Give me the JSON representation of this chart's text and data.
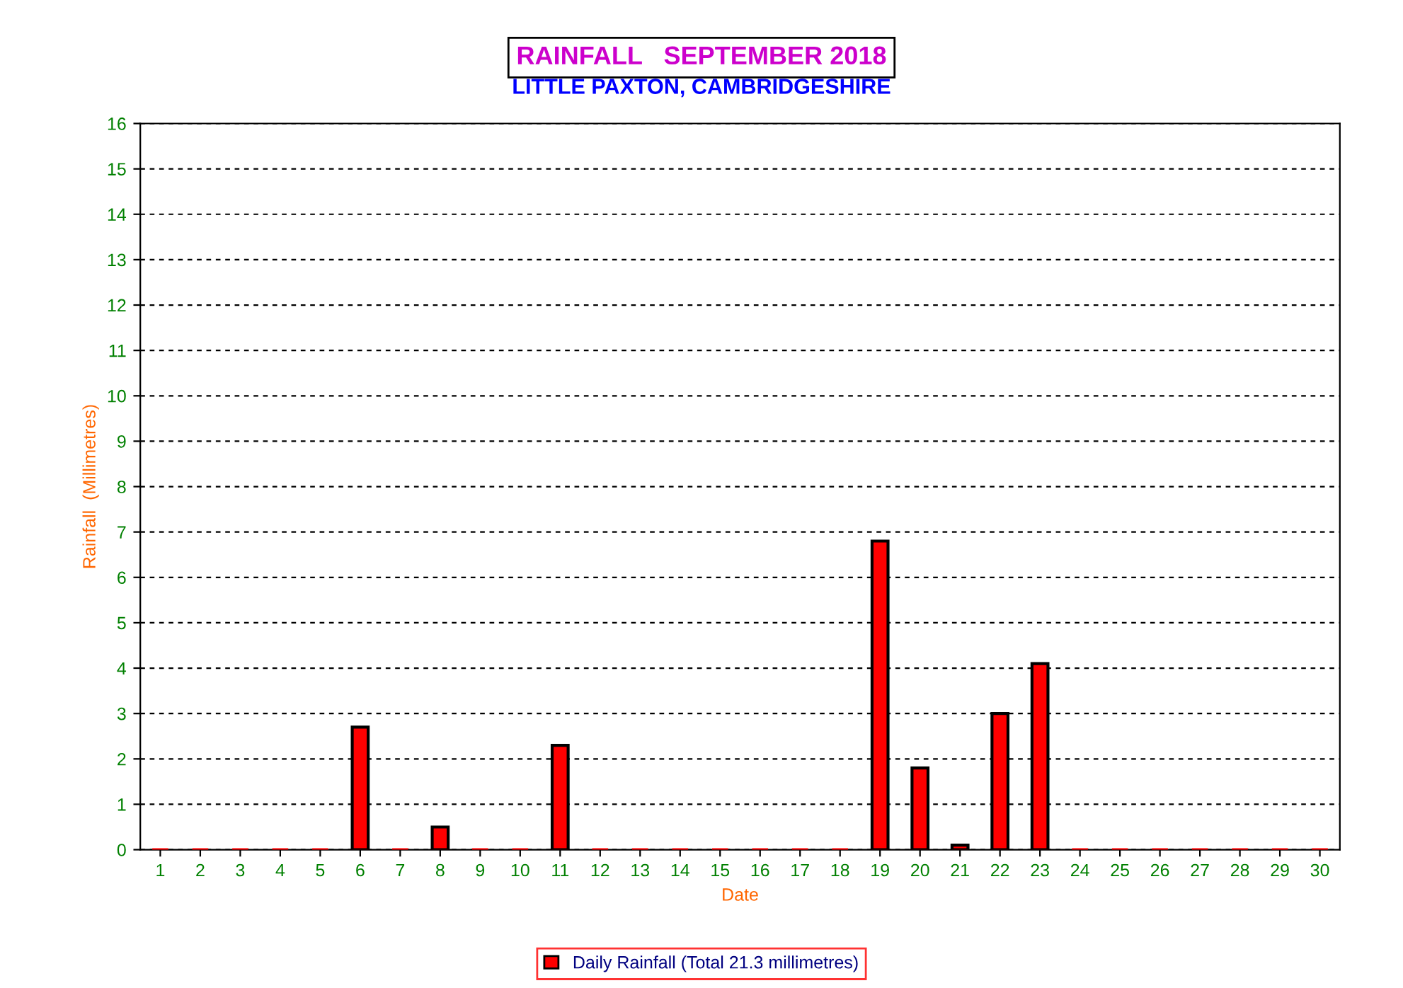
{
  "chart_data": {
    "type": "bar",
    "title": "RAINFALL   SEPTEMBER 2018",
    "subtitle": "LITTLE PAXTON, CAMBRIDGESHIRE",
    "xlabel": "Date",
    "ylabel": "Rainfall  (Millimetres)",
    "categories": [
      "1",
      "2",
      "3",
      "4",
      "5",
      "6",
      "7",
      "8",
      "9",
      "10",
      "11",
      "12",
      "13",
      "14",
      "15",
      "16",
      "17",
      "18",
      "19",
      "20",
      "21",
      "22",
      "23",
      "24",
      "25",
      "26",
      "27",
      "28",
      "29",
      "30"
    ],
    "series": [
      {
        "name": "Daily Rainfall (Total 21.3 millimetres)",
        "color": "#ff0000",
        "values": [
          0,
          0,
          0,
          0,
          0,
          2.7,
          0,
          0.5,
          0,
          0,
          2.3,
          0,
          0,
          0,
          0,
          0,
          0,
          0,
          6.8,
          1.8,
          0.1,
          3.0,
          4.1,
          0,
          0,
          0,
          0,
          0,
          0,
          0
        ]
      }
    ],
    "ylim": [
      0,
      16
    ],
    "yticks": [
      0,
      1,
      2,
      3,
      4,
      5,
      6,
      7,
      8,
      9,
      10,
      11,
      12,
      13,
      14,
      15,
      16
    ],
    "grid": "y",
    "legend": "bottom"
  }
}
